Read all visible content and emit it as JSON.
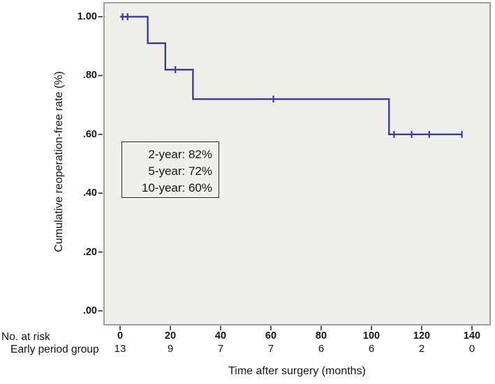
{
  "chart_data": {
    "type": "line",
    "subtype": "kaplan-meier-step-curve",
    "title": "",
    "xlabel": "Time after surgery (months)",
    "ylabel": "Cumulative reoperation-free rate (%)",
    "xlim": [
      -7,
      147
    ],
    "ylim": [
      -0.05,
      1.05
    ],
    "grid": false,
    "legend": "none",
    "x_ticks": [
      0,
      20,
      40,
      60,
      80,
      100,
      120,
      140
    ],
    "y_ticks": [
      {
        "value": 1.0,
        "label": "1.00"
      },
      {
        "value": 0.8,
        "label": ".80"
      },
      {
        "value": 0.6,
        "label": ".60"
      },
      {
        "value": 0.4,
        "label": ".40"
      },
      {
        "value": 0.2,
        "label": ".20"
      },
      {
        "value": 0.0,
        "label": ".00"
      }
    ],
    "series": [
      {
        "name": "Early period group",
        "step_points": [
          [
            0,
            1.0
          ],
          [
            11,
            1.0
          ],
          [
            11,
            0.91
          ],
          [
            18,
            0.91
          ],
          [
            18,
            0.82
          ],
          [
            29,
            0.82
          ],
          [
            29,
            0.72
          ],
          [
            107,
            0.72
          ],
          [
            107,
            0.6
          ],
          [
            136,
            0.6
          ]
        ],
        "censor_marks": [
          [
            1,
            1.0
          ],
          [
            3,
            1.0
          ],
          [
            22,
            0.82
          ],
          [
            61,
            0.72
          ],
          [
            109,
            0.6
          ],
          [
            116,
            0.6
          ],
          [
            123,
            0.6
          ],
          [
            136,
            0.6
          ]
        ],
        "survival_levels": [
          1.0,
          0.91,
          0.82,
          0.72,
          0.6
        ]
      }
    ],
    "annotation": {
      "lines": [
        "2-year: 82%",
        "5-year: 72%",
        "10-year: 60%"
      ]
    },
    "at_risk_table": {
      "header": "No. at risk",
      "row_label": "Early period group",
      "times": [
        0,
        20,
        40,
        60,
        80,
        100,
        120,
        140
      ],
      "counts": [
        13,
        9,
        7,
        7,
        6,
        6,
        2,
        0
      ]
    },
    "colors": {
      "line": "#3b3e95",
      "plot_background": "#f0efeb",
      "frame": "#a39f9a",
      "tick": "#2e2e2e",
      "text": "#151515",
      "outer_background": "#ffffff"
    }
  }
}
